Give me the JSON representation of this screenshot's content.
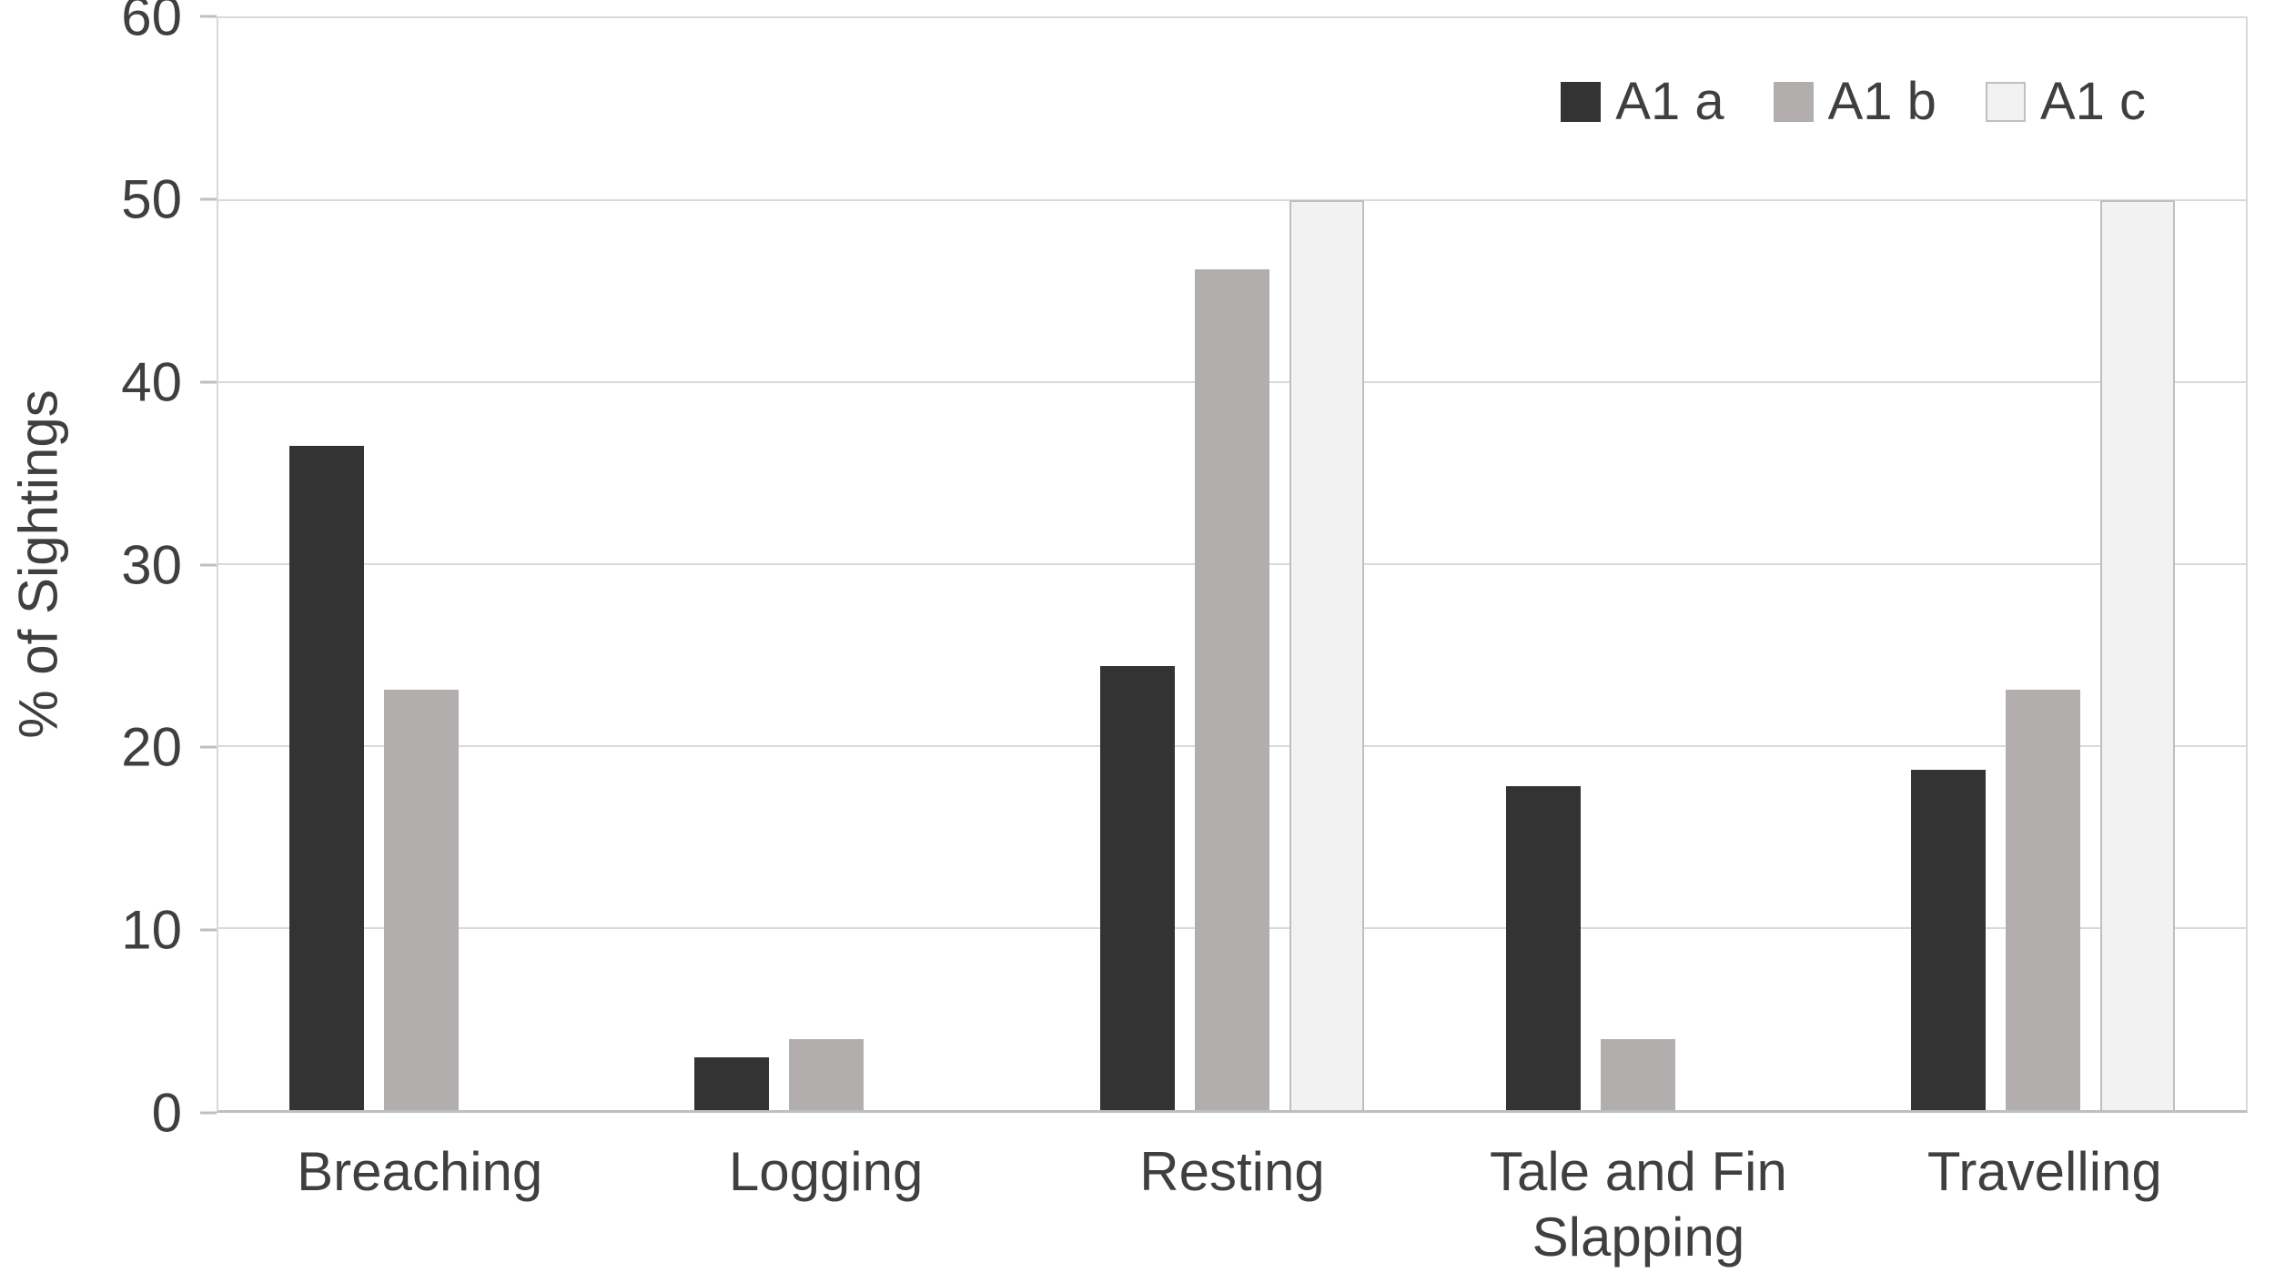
{
  "chart_data": {
    "type": "bar",
    "title": "",
    "xlabel": "",
    "ylabel": "% of Sightings",
    "ylim": [
      0,
      60
    ],
    "yticks": [
      0,
      10,
      20,
      30,
      40,
      50,
      60
    ],
    "grid": true,
    "legend_position": "top-right",
    "categories": [
      "Breaching",
      "Logging",
      "Resting",
      "Tale and Fin Slapping",
      "Travelling"
    ],
    "series": [
      {
        "name": "A1 a",
        "color": "#333333",
        "border_color": "",
        "values": [
          36.5,
          2.9,
          24.4,
          17.8,
          18.7
        ]
      },
      {
        "name": "A1 b",
        "color": "#b3aeae",
        "border_color": "",
        "values": [
          23.1,
          3.9,
          46.2,
          3.9,
          23.1
        ]
      },
      {
        "name": "A1 c",
        "color": "#f2f2f2",
        "border_color": "#bfbfbf",
        "values": [
          0,
          0,
          50,
          0,
          50
        ]
      }
    ],
    "colors": {
      "gridline": "#d9d9d9",
      "axis_line": "#bfbfbf",
      "text": "#3f3f3f",
      "background": "#ffffff"
    }
  }
}
